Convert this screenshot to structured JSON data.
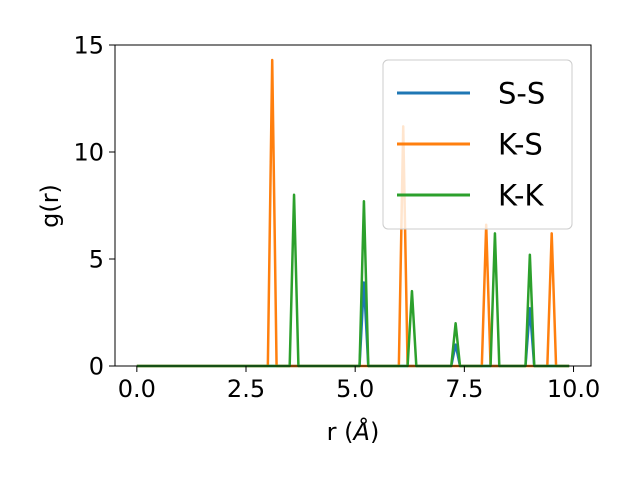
{
  "chart_data": {
    "type": "line",
    "title": "",
    "xlabel": "r (",
    "xlabel_symbol": "Å",
    "xlabel_close": ")",
    "ylabel": "g(r)",
    "xlim": [
      -0.5,
      10.4
    ],
    "ylim": [
      0,
      15
    ],
    "xticks": [
      0.0,
      2.5,
      5.0,
      7.5,
      10.0
    ],
    "xtick_labels": [
      "0.0",
      "2.5",
      "5.0",
      "7.5",
      "10.0"
    ],
    "yticks": [
      0,
      5,
      10,
      15
    ],
    "ytick_labels": [
      "0",
      "5",
      "10",
      "15"
    ],
    "grid": false,
    "legend_position": "top-right",
    "series": [
      {
        "name": "S-S",
        "color": "#1f77b4",
        "x": [
          0.0,
          5.1,
          5.2,
          5.3,
          7.2,
          7.3,
          7.4,
          8.9,
          9.0,
          9.1,
          9.9
        ],
        "y": [
          0,
          0,
          3.9,
          0,
          0,
          1.0,
          0,
          0,
          2.7,
          0,
          0
        ]
      },
      {
        "name": "K-S",
        "color": "#ff7f0e",
        "x": [
          0.0,
          3.0,
          3.1,
          3.2,
          6.0,
          6.1,
          6.2,
          7.9,
          8.0,
          8.1,
          9.4,
          9.5,
          9.6,
          9.9
        ],
        "y": [
          0,
          0,
          14.3,
          0,
          0,
          11.2,
          0,
          0,
          6.6,
          0,
          0,
          6.2,
          0,
          0
        ]
      },
      {
        "name": "K-K",
        "color": "#2ca02c",
        "x": [
          0.0,
          3.5,
          3.6,
          3.7,
          5.1,
          5.2,
          5.3,
          6.2,
          6.3,
          6.4,
          7.2,
          7.3,
          7.4,
          8.1,
          8.2,
          8.3,
          8.9,
          9.0,
          9.1,
          9.9
        ],
        "y": [
          0,
          0,
          8.0,
          0,
          0,
          7.7,
          0,
          0,
          3.5,
          0,
          0,
          2.0,
          0,
          0,
          6.2,
          0,
          0,
          5.2,
          0,
          0
        ]
      }
    ]
  }
}
